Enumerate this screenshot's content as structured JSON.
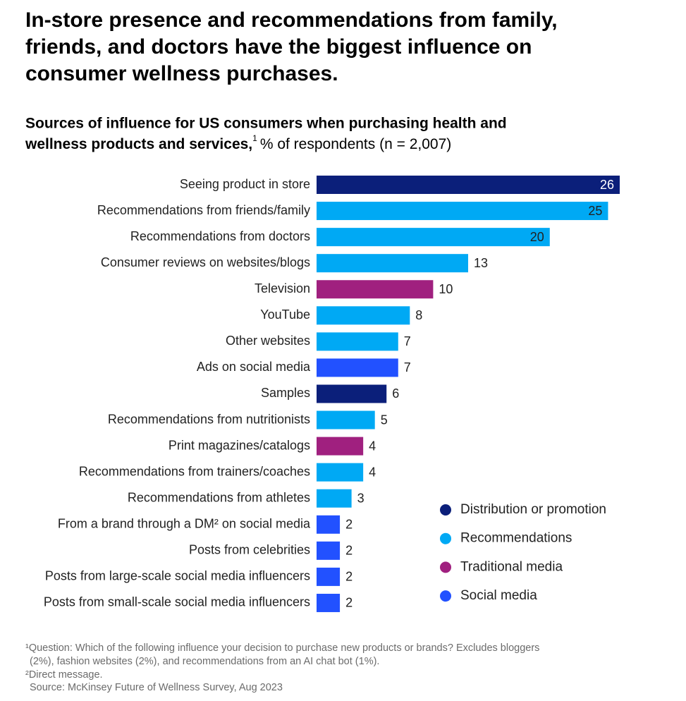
{
  "chart_data": {
    "type": "bar",
    "orientation": "horizontal",
    "title": [
      "In-store presence and recommendations from family,",
      "friends, and doctors have the biggest influence on",
      "consumer wellness purchases."
    ],
    "subtitle": [
      "Sources of influence for US consumers when purchasing health and",
      "wellness products and services,"
    ],
    "subtitle_note": "1",
    "unit": "% of respondents (n = 2,007)",
    "categories": [
      "Seeing product in store",
      "Recommendations from friends/family",
      "Recommendations from doctors",
      "Consumer reviews on websites/blogs",
      "Television",
      "YouTube",
      "Other websites",
      "Ads on social media",
      "Samples",
      "Recommendations from nutritionists",
      "Print magazines/catalogs",
      "Recommendations from trainers/coaches",
      "Recommendations from athletes",
      "From a brand through a DM² on social media",
      "Posts from celebrities",
      "Posts from large-scale social media influencers",
      "Posts from small-scale social media influencers"
    ],
    "series": [
      {
        "name": "Distribution or promotion",
        "color": "#0b1f7a",
        "values": [
          26,
          null,
          null,
          null,
          null,
          null,
          null,
          null,
          6,
          null,
          null,
          null,
          null,
          null,
          null,
          null,
          null
        ]
      },
      {
        "name": "Recommendations",
        "color": "#00a9f4",
        "values": [
          null,
          25,
          20,
          13,
          null,
          8,
          7,
          null,
          null,
          5,
          null,
          4,
          3,
          null,
          null,
          null,
          null
        ]
      },
      {
        "name": "Traditional media",
        "color": "#a0207f",
        "values": [
          null,
          null,
          null,
          null,
          10,
          null,
          null,
          null,
          null,
          null,
          4,
          null,
          null,
          null,
          null,
          null,
          null
        ]
      },
      {
        "name": "Social media",
        "color": "#2251ff",
        "values": [
          null,
          null,
          null,
          null,
          null,
          null,
          null,
          7,
          null,
          null,
          null,
          null,
          null,
          2,
          2,
          2,
          2
        ]
      }
    ],
    "xlim": [
      0,
      26
    ],
    "footnotes": [
      "¹Question: Which of the following influence your decision to purchase new products or brands? Excludes bloggers",
      "(2%), fashion websites (2%), and recommendations from an AI chat bot (1%).",
      "²Direct message.",
      "Source: McKinsey Future of Wellness Survey, Aug 2023"
    ]
  }
}
